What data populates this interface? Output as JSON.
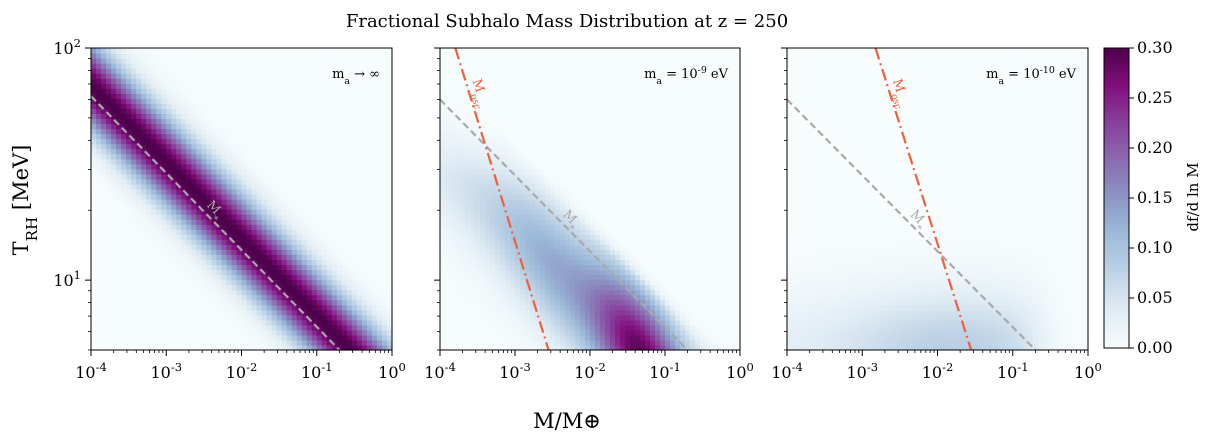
{
  "figure": {
    "title": "Fractional Subhalo Mass Distribution at z = 250",
    "xlabel": "M/M⊕",
    "ylabel": "T_RH [MeV]",
    "colorbar_label": "df/d ln M"
  },
  "chart_data": [
    {
      "type": "heatmap",
      "panel_label": "m_a → ∞",
      "x_scale": "log",
      "y_scale": "log",
      "xlim": [
        0.0001,
        1
      ],
      "ylim": [
        5,
        100
      ],
      "xticks": [
        "10^-4",
        "10^-3",
        "10^-2",
        "10^-1",
        "10^0"
      ],
      "yticks": [
        "10^1",
        "10^2"
      ],
      "colormap": "BuPu",
      "clim": [
        0,
        0.3
      ],
      "band": {
        "center_shift_dex": 0.05,
        "width_dex": 0.3,
        "peak_value": 0.3
      },
      "lines": [
        {
          "name": "M_*",
          "style": "dashed",
          "color": "#a9a9a9",
          "points": [
            {
              "x": 0.0001,
              "y": 62
            },
            {
              "x": 0.2,
              "y": 5
            }
          ]
        }
      ]
    },
    {
      "type": "heatmap",
      "panel_label": "m_a = 10^-9 eV",
      "x_scale": "log",
      "y_scale": "log",
      "xlim": [
        0.0001,
        1
      ],
      "ylim": [
        5,
        100
      ],
      "xticks": [
        "10^-4",
        "10^-3",
        "10^-2",
        "10^-1",
        "10^0"
      ],
      "colormap": "BuPu",
      "clim": [
        0,
        0.3
      ],
      "lines": [
        {
          "name": "M_*",
          "style": "dashed",
          "color": "#a9a9a9",
          "points": [
            {
              "x": 0.0001,
              "y": 60
            },
            {
              "x": 0.2,
              "y": 5
            }
          ]
        },
        {
          "name": "M_osc",
          "style": "dashdot",
          "color": "#f0603c",
          "points": [
            {
              "x": 0.00016,
              "y": 100
            },
            {
              "x": 0.0028,
              "y": 5
            }
          ]
        }
      ]
    },
    {
      "type": "heatmap",
      "panel_label": "m_a = 10^-10 eV",
      "x_scale": "log",
      "y_scale": "log",
      "xlim": [
        0.0001,
        1
      ],
      "ylim": [
        5,
        100
      ],
      "xticks": [
        "10^-4",
        "10^-3",
        "10^-2",
        "10^-1",
        "10^0"
      ],
      "colormap": "BuPu",
      "clim": [
        0,
        0.3
      ],
      "lines": [
        {
          "name": "M_*",
          "style": "dashed",
          "color": "#a9a9a9",
          "points": [
            {
              "x": 0.0001,
              "y": 60
            },
            {
              "x": 0.2,
              "y": 5
            }
          ]
        },
        {
          "name": "M_osc",
          "style": "dashdot",
          "color": "#f0603c",
          "points": [
            {
              "x": 0.0015,
              "y": 100
            },
            {
              "x": 0.028,
              "y": 5
            }
          ]
        }
      ]
    }
  ],
  "colorbar": {
    "ticks": [
      "0.00",
      "0.05",
      "0.10",
      "0.15",
      "0.20",
      "0.25",
      "0.30"
    ],
    "colors": [
      "#f7fcfd",
      "#e0ecf4",
      "#bfd3e6",
      "#9ebcda",
      "#8c96c6",
      "#8c6bb1",
      "#88419d",
      "#810f7c",
      "#4d004b"
    ]
  },
  "colors": {
    "mstar_line": "#a9a9a9",
    "mosc_line": "#f0603c"
  }
}
